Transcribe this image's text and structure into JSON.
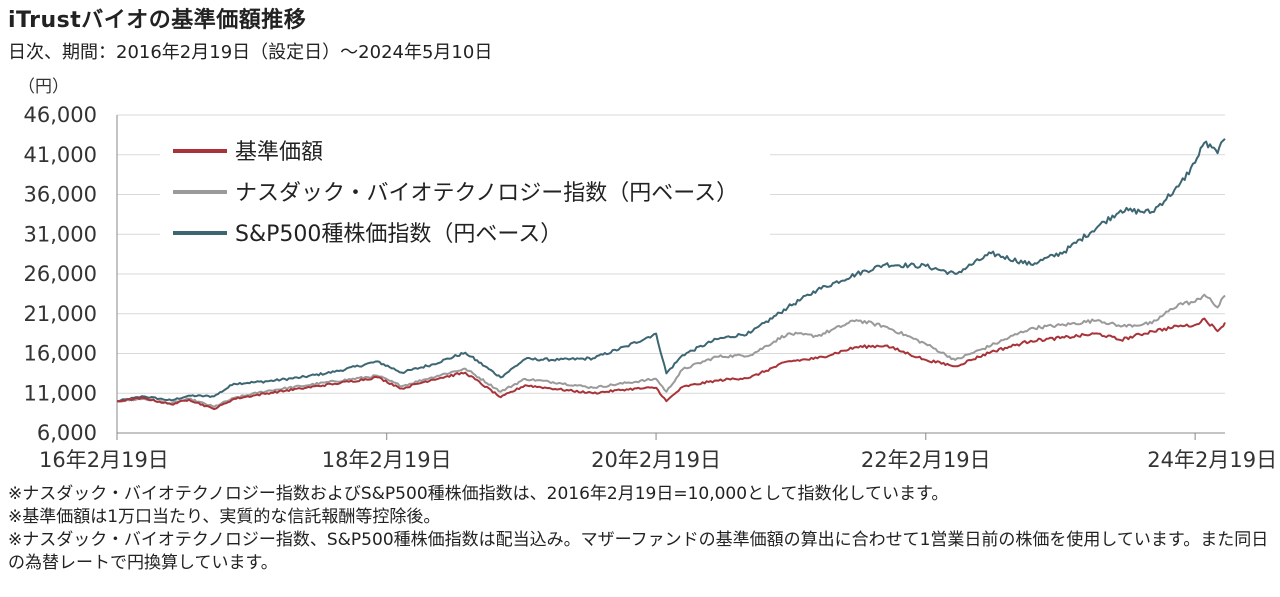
{
  "header": {
    "title": "iTrustバイオの基準価額推移",
    "subtitle": "日次、期間：2016年2月19日（設定日）～2024年5月10日"
  },
  "chart_data": {
    "type": "line",
    "yunit": "（円）",
    "ylim": [
      6000,
      46000
    ],
    "yticks": [
      6000,
      11000,
      16000,
      21000,
      26000,
      31000,
      36000,
      41000,
      46000
    ],
    "ytick_labels": [
      "6,000",
      "11,000",
      "16,000",
      "21,000",
      "26,000",
      "31,000",
      "36,000",
      "41,000",
      "46,000"
    ],
    "xlim": [
      "2016-02-19",
      "2024-05-10"
    ],
    "xticks": [
      "2016-02-19",
      "2018-02-19",
      "2020-02-19",
      "2022-02-19",
      "2024-02-19"
    ],
    "xtick_labels": [
      "16年2月19日",
      "18年2月19日",
      "20年2月19日",
      "22年2月19日",
      "24年2月19日"
    ],
    "grid": "horizontal",
    "legend_position": "top-left",
    "series": [
      {
        "name": "基準価額",
        "color": "#a8343a",
        "points": [
          [
            "2016-02-19",
            10000
          ],
          [
            "2016-05-01",
            10400
          ],
          [
            "2016-07-15",
            9600
          ],
          [
            "2016-09-01",
            10200
          ],
          [
            "2016-11-08",
            9000
          ],
          [
            "2017-01-01",
            10300
          ],
          [
            "2017-04-01",
            11000
          ],
          [
            "2017-07-01",
            11600
          ],
          [
            "2017-10-01",
            12200
          ],
          [
            "2018-01-25",
            13000
          ],
          [
            "2018-04-01",
            11600
          ],
          [
            "2018-06-20",
            12700
          ],
          [
            "2018-09-20",
            13600
          ],
          [
            "2018-12-25",
            10500
          ],
          [
            "2019-03-01",
            12000
          ],
          [
            "2019-06-01",
            11500
          ],
          [
            "2019-09-01",
            11000
          ],
          [
            "2019-12-01",
            11500
          ],
          [
            "2020-02-19",
            11700
          ],
          [
            "2020-03-18",
            10000
          ],
          [
            "2020-05-01",
            11800
          ],
          [
            "2020-08-01",
            12600
          ],
          [
            "2020-11-01",
            13000
          ],
          [
            "2021-02-10",
            15000
          ],
          [
            "2021-05-01",
            15400
          ],
          [
            "2021-08-15",
            16800
          ],
          [
            "2021-11-01",
            17000
          ],
          [
            "2022-02-19",
            15200
          ],
          [
            "2022-05-10",
            14400
          ],
          [
            "2022-08-15",
            16200
          ],
          [
            "2022-12-01",
            17600
          ],
          [
            "2023-03-01",
            18000
          ],
          [
            "2023-06-01",
            18500
          ],
          [
            "2023-08-01",
            17700
          ],
          [
            "2023-10-25",
            18800
          ],
          [
            "2024-01-05",
            19400
          ],
          [
            "2024-02-19",
            19600
          ],
          [
            "2024-03-15",
            20400
          ],
          [
            "2024-04-20",
            18800
          ],
          [
            "2024-05-10",
            19900
          ]
        ]
      },
      {
        "name": "ナスダック・バイオテクノロジー指数（円ベース）",
        "color": "#9a9a9a",
        "points": [
          [
            "2016-02-19",
            10000
          ],
          [
            "2016-05-01",
            10300
          ],
          [
            "2016-07-15",
            9700
          ],
          [
            "2016-09-01",
            10300
          ],
          [
            "2016-11-08",
            9300
          ],
          [
            "2017-01-01",
            10400
          ],
          [
            "2017-04-01",
            11300
          ],
          [
            "2017-07-01",
            11900
          ],
          [
            "2017-10-01",
            12500
          ],
          [
            "2018-01-25",
            13200
          ],
          [
            "2018-04-01",
            11900
          ],
          [
            "2018-06-20",
            13000
          ],
          [
            "2018-09-20",
            14100
          ],
          [
            "2018-12-25",
            11200
          ],
          [
            "2019-03-01",
            12800
          ],
          [
            "2019-06-01",
            12300
          ],
          [
            "2019-09-01",
            11700
          ],
          [
            "2019-12-01",
            12300
          ],
          [
            "2020-02-19",
            12800
          ],
          [
            "2020-03-18",
            11200
          ],
          [
            "2020-05-01",
            14000
          ],
          [
            "2020-08-01",
            15600
          ],
          [
            "2020-11-01",
            15800
          ],
          [
            "2021-02-10",
            18500
          ],
          [
            "2021-05-01",
            18200
          ],
          [
            "2021-08-15",
            20200
          ],
          [
            "2021-11-01",
            19400
          ],
          [
            "2022-02-19",
            17200
          ],
          [
            "2022-05-10",
            15200
          ],
          [
            "2022-08-15",
            17000
          ],
          [
            "2022-12-01",
            19200
          ],
          [
            "2023-03-01",
            19600
          ],
          [
            "2023-06-01",
            20200
          ],
          [
            "2023-08-01",
            19400
          ],
          [
            "2023-10-25",
            19800
          ],
          [
            "2024-01-05",
            22200
          ],
          [
            "2024-02-19",
            22500
          ],
          [
            "2024-03-15",
            23400
          ],
          [
            "2024-04-20",
            21800
          ],
          [
            "2024-05-10",
            23300
          ]
        ]
      },
      {
        "name": "S&P500種株価指数（円ベース）",
        "color": "#3d6673",
        "points": [
          [
            "2016-02-19",
            10000
          ],
          [
            "2016-05-01",
            10600
          ],
          [
            "2016-07-15",
            10100
          ],
          [
            "2016-09-01",
            10700
          ],
          [
            "2016-11-08",
            10600
          ],
          [
            "2017-01-01",
            12200
          ],
          [
            "2017-04-01",
            12500
          ],
          [
            "2017-07-01",
            13000
          ],
          [
            "2017-10-01",
            13700
          ],
          [
            "2018-01-25",
            15000
          ],
          [
            "2018-04-01",
            13600
          ],
          [
            "2018-06-20",
            14600
          ],
          [
            "2018-09-20",
            16100
          ],
          [
            "2018-12-25",
            13000
          ],
          [
            "2019-03-01",
            15300
          ],
          [
            "2019-06-01",
            15200
          ],
          [
            "2019-09-01",
            15400
          ],
          [
            "2019-12-01",
            16900
          ],
          [
            "2020-02-19",
            18500
          ],
          [
            "2020-03-18",
            13500
          ],
          [
            "2020-05-01",
            15800
          ],
          [
            "2020-08-01",
            17800
          ],
          [
            "2020-11-01",
            18600
          ],
          [
            "2021-02-10",
            21800
          ],
          [
            "2021-05-01",
            24000
          ],
          [
            "2021-08-15",
            26000
          ],
          [
            "2021-11-01",
            27200
          ],
          [
            "2022-02-19",
            27000
          ],
          [
            "2022-05-10",
            26000
          ],
          [
            "2022-08-15",
            28600
          ],
          [
            "2022-12-01",
            27200
          ],
          [
            "2023-03-01",
            28800
          ],
          [
            "2023-06-01",
            32000
          ],
          [
            "2023-08-01",
            34000
          ],
          [
            "2023-10-25",
            33800
          ],
          [
            "2024-01-05",
            37000
          ],
          [
            "2024-02-19",
            40000
          ],
          [
            "2024-03-15",
            42500
          ],
          [
            "2024-04-20",
            41200
          ],
          [
            "2024-05-10",
            43000
          ]
        ]
      }
    ]
  },
  "notes": [
    "※ナスダック・バイオテクノロジー指数およびS&P500種株価指数は、2016年2月19日=10,000として指数化しています。",
    "※基準価額は1万口当たり、実質的な信託報酬等控除後。",
    "※ナスダック・バイオテクノロジー指数、S&P500種株価指数は配当込み。マザーファンドの基準価額の算出に合わせて1営業日前の株価を使用しています。また同日の為替レートで円換算しています。"
  ]
}
